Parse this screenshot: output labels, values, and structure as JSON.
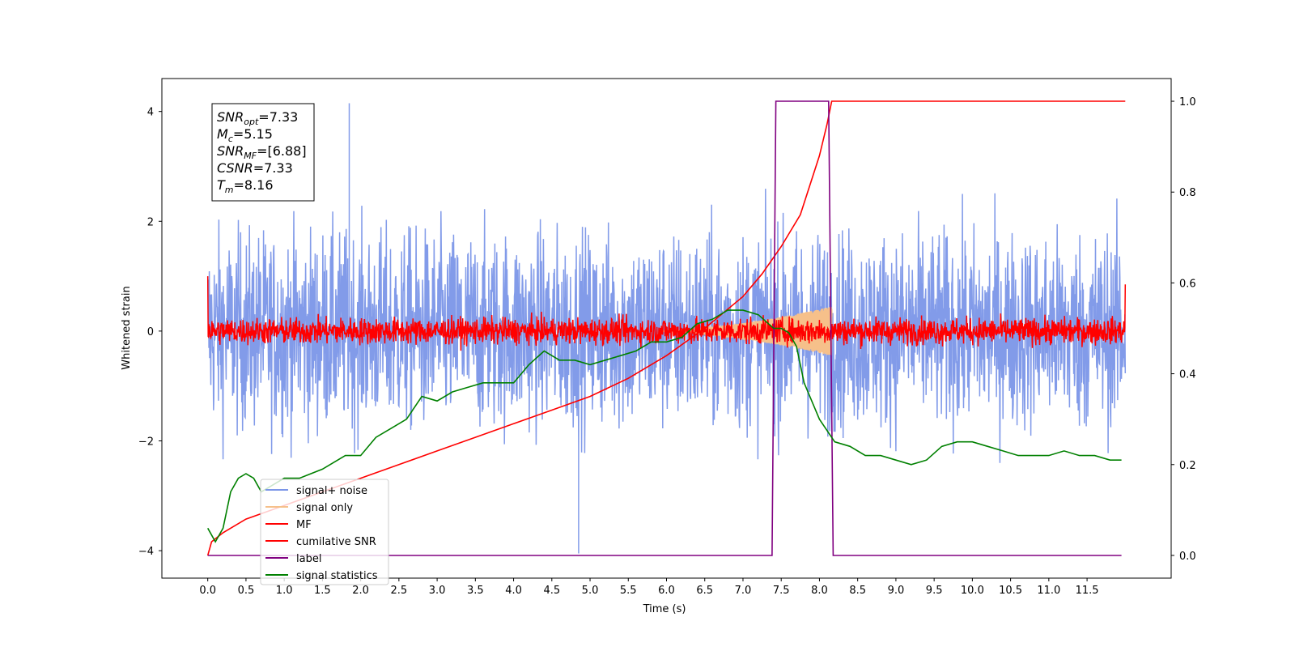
{
  "chart_data": {
    "type": "line",
    "xlabel": "Time (s)",
    "ylabel": "Whitened strain",
    "xlim": [
      -0.6,
      12.6
    ],
    "ylim": [
      -4.5,
      4.6
    ],
    "y2lim": [
      -0.05,
      1.05
    ],
    "xticks": [
      0.0,
      0.5,
      1.0,
      1.5,
      2.0,
      2.5,
      3.0,
      3.5,
      4.0,
      4.5,
      5.0,
      5.5,
      6.0,
      6.5,
      7.0,
      7.5,
      8.0,
      8.5,
      9.0,
      9.5,
      10.0,
      10.5,
      11.0,
      11.5
    ],
    "xtick_labels": [
      "0.0",
      "0.5",
      "1.0",
      "1.5",
      "2.0",
      "2.5",
      "3.0",
      "3.5",
      "4.0",
      "4.5",
      "5.0",
      "5.5",
      "6.0",
      "6.5",
      "7.0",
      "7.5",
      "8.0",
      "8.5",
      "9.0",
      "9.5",
      "10.0",
      "10.5",
      "11.0",
      "11.5"
    ],
    "yticks": [
      -4,
      -2,
      0,
      2,
      4
    ],
    "ytick_labels": [
      "−4",
      "−2",
      "0",
      "2",
      "4"
    ],
    "y2ticks": [
      0.0,
      0.2,
      0.4,
      0.6,
      0.8,
      1.0
    ],
    "y2tick_labels": [
      "0.0",
      "0.2",
      "0.4",
      "0.6",
      "0.8",
      "1.0"
    ],
    "stats_box": [
      {
        "base": "SNR",
        "sub": "opt",
        "value": "=7.33"
      },
      {
        "base": "M",
        "sub": "c",
        "value": "=5.15"
      },
      {
        "base": "SNR",
        "sub": "MF",
        "value": "=[6.88]"
      },
      {
        "base": "CSNR",
        "sub": "",
        "value": "=7.33"
      },
      {
        "base": "T",
        "sub": "m",
        "value": "=8.16"
      }
    ],
    "legend_position": "lower-left",
    "legend": [
      {
        "label": "signal+ noise",
        "color": "#7b96e8"
      },
      {
        "label": "signal only",
        "color": "#f6c08a"
      },
      {
        "label": "MF",
        "color": "#ff0000"
      },
      {
        "label": "cumilative SNR",
        "color": "#ff0000"
      },
      {
        "label": "label",
        "color": "#800080"
      },
      {
        "label": "signal statistics",
        "color": "#008000"
      }
    ],
    "series": [
      {
        "name": "signal+ noise",
        "axis": "left",
        "color": "#7b96e8",
        "style": "noise",
        "x_range": [
          0.0,
          12.0
        ],
        "amplitude_sd": 0.9,
        "min": -4.05,
        "max": 4.15
      },
      {
        "name": "signal only",
        "axis": "left",
        "color": "#f6c08a",
        "style": "chirp",
        "x_range": [
          5.9,
          8.16
        ],
        "peak_amplitude": 0.45
      },
      {
        "name": "MF",
        "axis": "left",
        "color": "#ff0000",
        "style": "noise",
        "x_range": [
          0.0,
          12.0
        ],
        "amplitude_sd": 0.12,
        "start_value": 1.0,
        "end_value": 0.85
      },
      {
        "name": "cumilative SNR",
        "axis": "right",
        "color": "#ff0000",
        "x": [
          0.0,
          0.05,
          0.2,
          0.5,
          1.0,
          1.5,
          2.0,
          2.5,
          3.0,
          3.5,
          4.0,
          4.5,
          5.0,
          5.5,
          6.0,
          6.5,
          7.0,
          7.25,
          7.5,
          7.75,
          8.0,
          8.1,
          8.16,
          9.0,
          10.0,
          11.0,
          12.0
        ],
        "y": [
          0.0,
          0.03,
          0.05,
          0.08,
          0.11,
          0.14,
          0.17,
          0.2,
          0.23,
          0.26,
          0.29,
          0.32,
          0.35,
          0.39,
          0.44,
          0.5,
          0.57,
          0.62,
          0.68,
          0.75,
          0.88,
          0.95,
          1.0,
          1.0,
          1.0,
          1.0,
          1.0
        ]
      },
      {
        "name": "label",
        "axis": "right",
        "color": "#800080",
        "x": [
          0.0,
          7.38,
          7.43,
          8.12,
          8.18,
          11.95
        ],
        "y": [
          0.0,
          0.0,
          1.0,
          1.0,
          0.0,
          0.0
        ]
      },
      {
        "name": "signal statistics",
        "axis": "right",
        "color": "#008000",
        "x": [
          0.0,
          0.1,
          0.2,
          0.3,
          0.4,
          0.5,
          0.6,
          0.7,
          0.8,
          0.9,
          1.0,
          1.2,
          1.5,
          1.8,
          2.0,
          2.2,
          2.4,
          2.6,
          2.8,
          3.0,
          3.2,
          3.4,
          3.6,
          3.8,
          4.0,
          4.2,
          4.4,
          4.5,
          4.6,
          4.8,
          5.0,
          5.2,
          5.4,
          5.6,
          5.8,
          6.0,
          6.2,
          6.4,
          6.6,
          6.8,
          7.0,
          7.2,
          7.4,
          7.5,
          7.6,
          7.7,
          7.8,
          8.0,
          8.2,
          8.4,
          8.6,
          8.8,
          9.0,
          9.2,
          9.4,
          9.6,
          9.8,
          10.0,
          10.2,
          10.4,
          10.6,
          10.8,
          11.0,
          11.2,
          11.4,
          11.6,
          11.8,
          11.95
        ],
        "y": [
          0.06,
          0.03,
          0.06,
          0.14,
          0.17,
          0.18,
          0.17,
          0.14,
          0.15,
          0.16,
          0.17,
          0.17,
          0.19,
          0.22,
          0.22,
          0.26,
          0.28,
          0.3,
          0.35,
          0.34,
          0.36,
          0.37,
          0.38,
          0.38,
          0.38,
          0.42,
          0.45,
          0.44,
          0.43,
          0.43,
          0.42,
          0.43,
          0.44,
          0.45,
          0.47,
          0.47,
          0.48,
          0.51,
          0.52,
          0.54,
          0.54,
          0.53,
          0.5,
          0.5,
          0.49,
          0.46,
          0.38,
          0.3,
          0.25,
          0.24,
          0.22,
          0.22,
          0.21,
          0.2,
          0.21,
          0.24,
          0.25,
          0.25,
          0.24,
          0.23,
          0.22,
          0.22,
          0.22,
          0.23,
          0.22,
          0.22,
          0.21,
          0.21
        ]
      }
    ]
  }
}
